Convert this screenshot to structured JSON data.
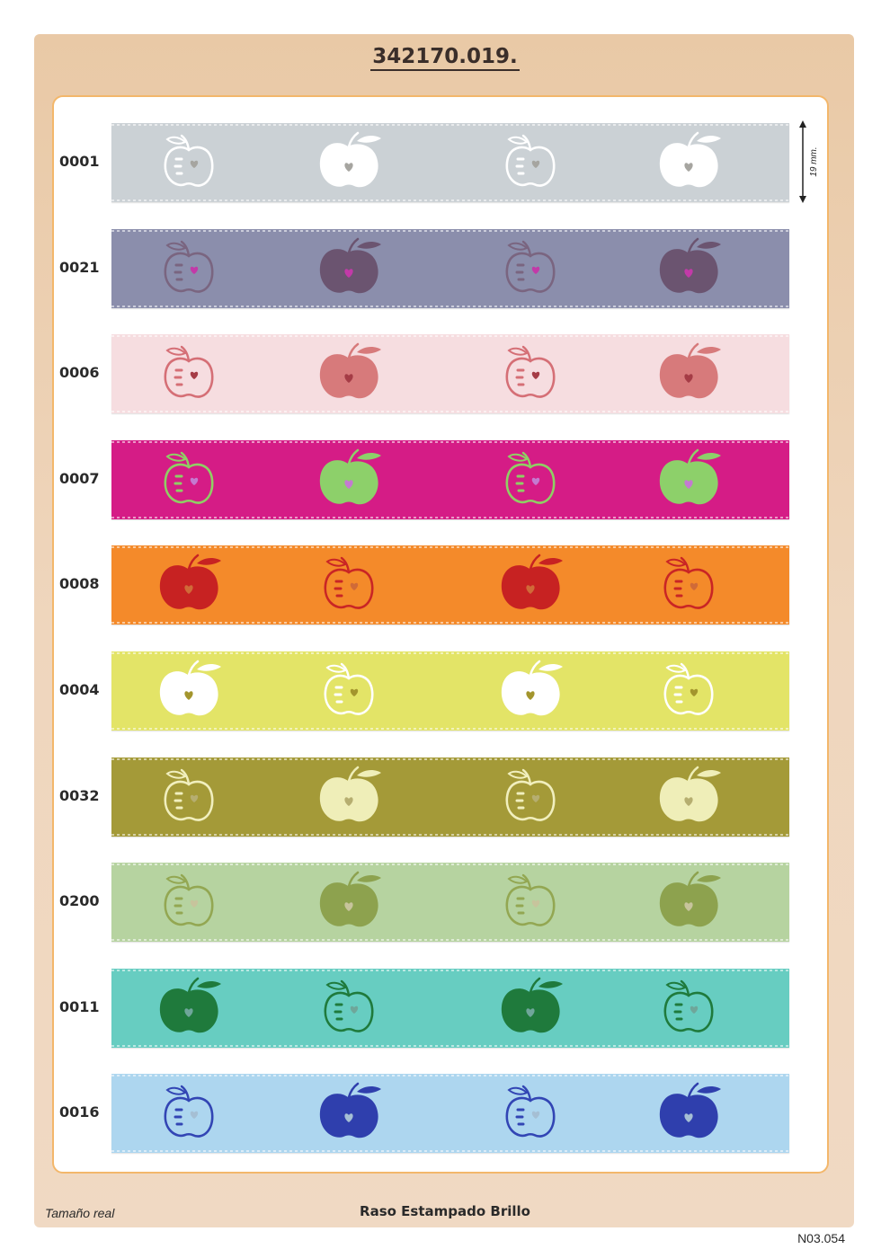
{
  "header": {
    "title": "342170.019."
  },
  "measure": {
    "label": "19 mm."
  },
  "ribbons": [
    {
      "code": "0001",
      "color": "#cbd1d5",
      "solid": "#ffffff",
      "outline": "#ffffff",
      "heart": "#a6a5a0"
    },
    {
      "code": "0021",
      "color": "#8b8eac",
      "solid": "#6b5470",
      "outline": "#7a6580",
      "heart": "#c23aa8"
    },
    {
      "code": "0006",
      "color": "#f6dde0",
      "solid": "#d77a7b",
      "outline": "#d56f76",
      "heart": "#a53c46"
    },
    {
      "code": "0007",
      "color": "#d51c86",
      "solid": "#8dd06a",
      "outline": "#8fcf64",
      "heart": "#c47ad0"
    },
    {
      "code": "0008",
      "color": "#f48a2a",
      "solid": "#c72222",
      "outline": "#c92525",
      "heart": "#d06a38"
    },
    {
      "code": "0004",
      "color": "#e3e467",
      "solid": "#ffffff",
      "outline": "#ffffff",
      "heart": "#a3952d"
    },
    {
      "code": "0032",
      "color": "#a49a38",
      "solid": "#efeeb8",
      "outline": "#f1efbe",
      "heart": "#b6ae70"
    },
    {
      "code": "0200",
      "color": "#b6d3a0",
      "solid": "#8da24e",
      "outline": "#93a752",
      "heart": "#c7c49c"
    },
    {
      "code": "0011",
      "color": "#67cdc1",
      "solid": "#1f7a3c",
      "outline": "#1f7a3c",
      "heart": "#6fa69a"
    },
    {
      "code": "0016",
      "color": "#add6ef",
      "solid": "#2f3fad",
      "outline": "#3245b4",
      "heart": "#a5bfd4"
    }
  ],
  "footer": {
    "left": "Tamaño real",
    "center": "Raso Estampado Brillo",
    "right": "N03.054"
  },
  "colors": {
    "frame": "#eccfb1",
    "panel_border": "#f3b76b"
  }
}
